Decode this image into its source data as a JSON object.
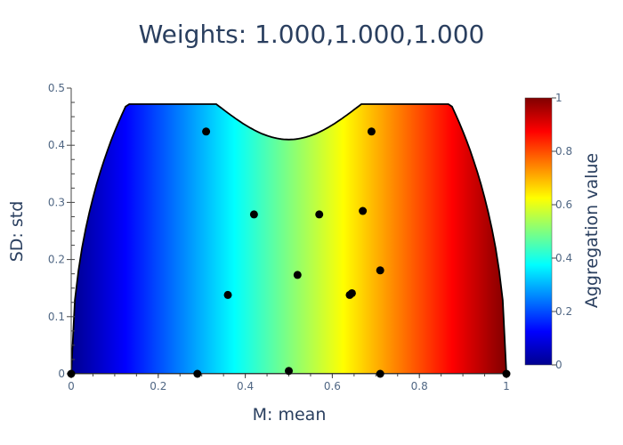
{
  "chart_data": {
    "type": "scatter",
    "title": "Weights: 1.000,1.000,1.000",
    "xlabel": "M: mean",
    "ylabel": "SD: std",
    "xlim": [
      0,
      1
    ],
    "ylim": [
      0,
      0.5
    ],
    "x_ticks": [
      0,
      0.2,
      0.4,
      0.6,
      0.8,
      1
    ],
    "y_ticks": [
      0,
      0.1,
      0.2,
      0.3,
      0.4,
      0.5
    ],
    "x_tick_labels": [
      "0",
      "0.2",
      "0.4",
      "0.6",
      "0.8",
      "1"
    ],
    "y_tick_labels": [
      "0",
      "0.1",
      "0.2",
      "0.3",
      "0.4",
      "0.5"
    ],
    "colorbar": {
      "title": "Aggregation value",
      "range": [
        0,
        1
      ],
      "ticks": [
        0,
        0.2,
        0.4,
        0.6,
        0.8,
        1
      ],
      "tick_labels": [
        "0",
        "0.2",
        "0.4",
        "0.6",
        "0.8",
        "1"
      ],
      "colorscale": [
        "#00008f",
        "#0000ff",
        "#00ffff",
        "#ffff00",
        "#ff0000",
        "#800000"
      ]
    },
    "heatmap": {
      "value": "equals M: mean",
      "region": "feasible mean-std region for values in [0,1]"
    },
    "points": [
      {
        "x": 0.31,
        "y": 0.424
      },
      {
        "x": 0.69,
        "y": 0.424
      },
      {
        "x": 0.42,
        "y": 0.279
      },
      {
        "x": 0.57,
        "y": 0.279
      },
      {
        "x": 0.67,
        "y": 0.285
      },
      {
        "x": 0.36,
        "y": 0.138
      },
      {
        "x": 0.52,
        "y": 0.173
      },
      {
        "x": 0.64,
        "y": 0.138
      },
      {
        "x": 0.645,
        "y": 0.141
      },
      {
        "x": 0.71,
        "y": 0.181
      },
      {
        "x": 0.29,
        "y": 0.0
      },
      {
        "x": 0.5,
        "y": 0.005
      },
      {
        "x": 0.71,
        "y": 0.0
      },
      {
        "x": 0.0,
        "y": 0.0
      },
      {
        "x": 1.0,
        "y": 0.0
      }
    ],
    "grid": false,
    "legend": "none"
  }
}
